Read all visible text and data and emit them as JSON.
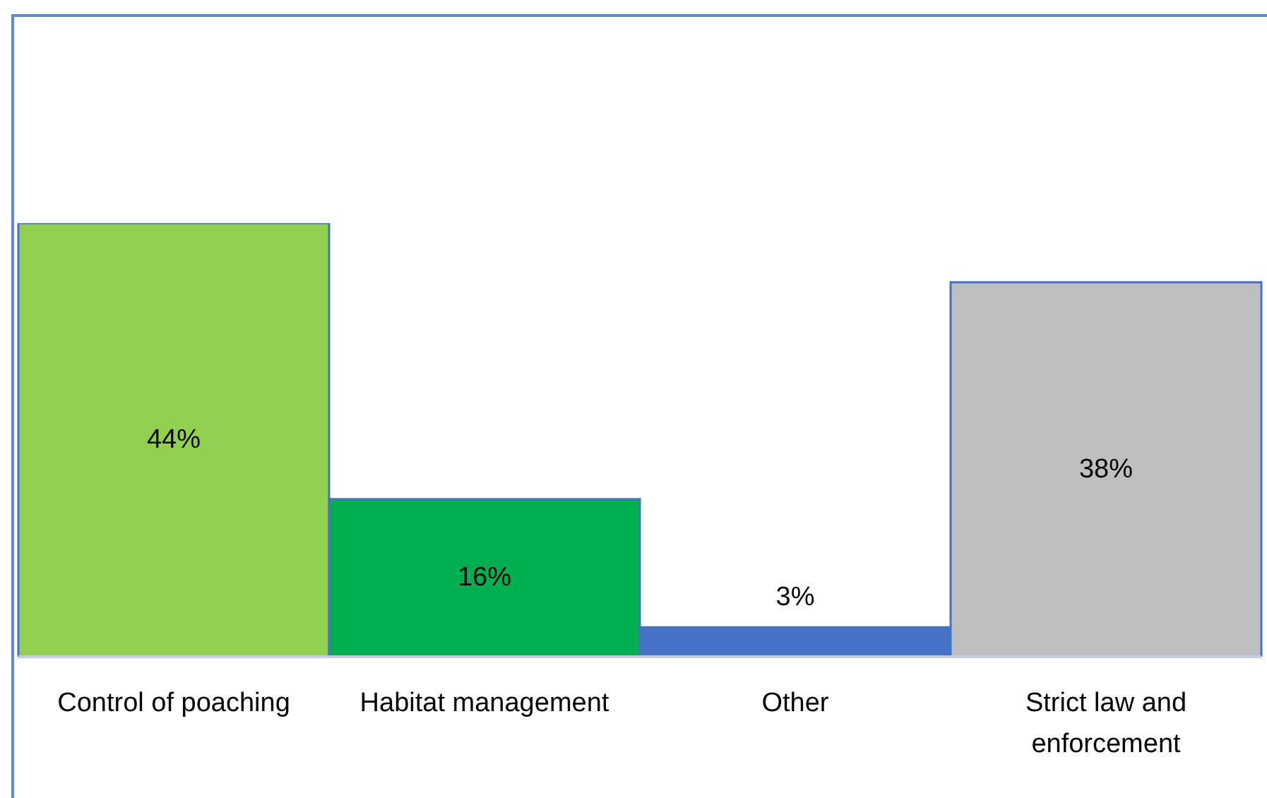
{
  "chart_data": {
    "type": "bar",
    "categories": [
      "Control of poaching",
      "Habitat management",
      "Other",
      "Strict law and enforcement"
    ],
    "values": [
      44,
      16,
      3,
      38
    ],
    "colors": [
      "#92d050",
      "#00b050",
      "#4472c4",
      "#bfbfbf"
    ],
    "value_labels": [
      "44%",
      "16%",
      "3%",
      "38%"
    ]
  }
}
